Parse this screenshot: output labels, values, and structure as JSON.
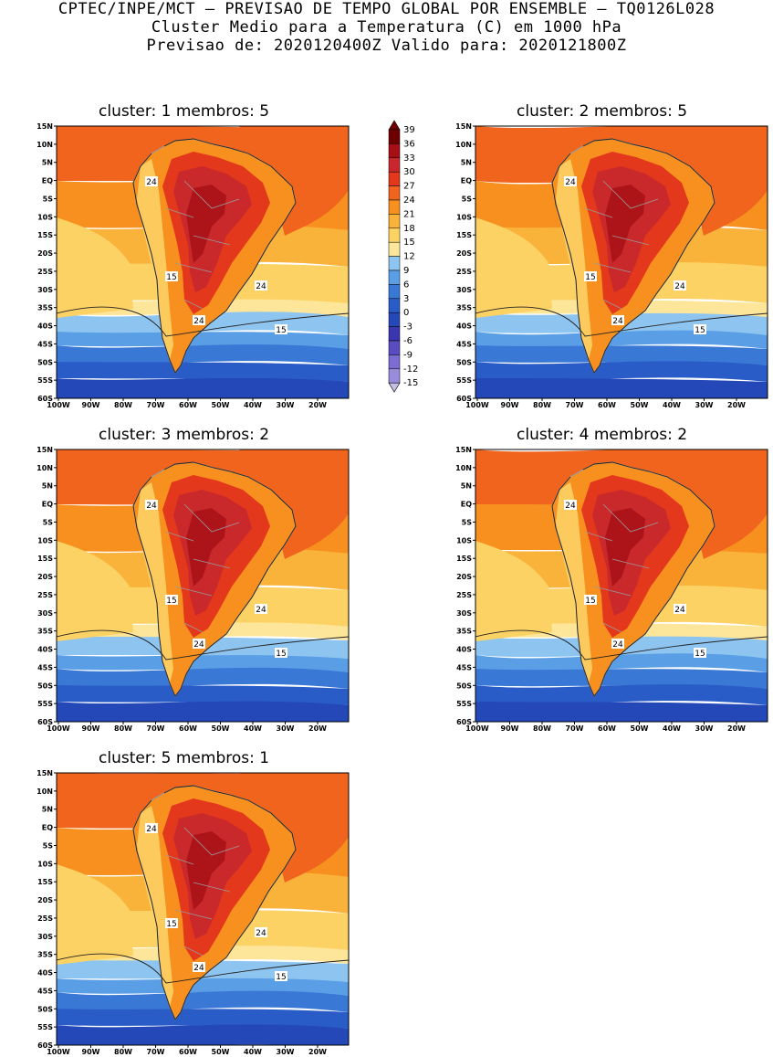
{
  "header": {
    "line1": "CPTEC/INPE/MCT – PREVISAO DE TEMPO GLOBAL POR ENSEMBLE – TQ0126L028",
    "line2": "Cluster Medio para a Temperatura (C) em 1000 hPa",
    "line3": "Previsao de: 2020120400Z   Valido para: 2020121800Z"
  },
  "axes": {
    "lat_labels": [
      "15N",
      "10N",
      "5N",
      "EQ",
      "5S",
      "10S",
      "15S",
      "20S",
      "25S",
      "30S",
      "35S",
      "40S",
      "45S",
      "50S",
      "55S",
      "60S"
    ],
    "lon_labels": [
      "100W",
      "90W",
      "80W",
      "70W",
      "60W",
      "50W",
      "40W",
      "30W",
      "20W"
    ]
  },
  "colorbar": {
    "labels": [
      "39",
      "36",
      "33",
      "30",
      "27",
      "24",
      "21",
      "18",
      "15",
      "12",
      "9",
      "6",
      "3",
      "0",
      "-3",
      "-6",
      "-9",
      "-12",
      "-15"
    ],
    "colors": [
      "#6e0000",
      "#a50f15",
      "#c8282d",
      "#e3381c",
      "#f0641e",
      "#f7901e",
      "#f9b23a",
      "#fdd264",
      "#fde69a",
      "#8ec5f0",
      "#5a9ee6",
      "#3a78d6",
      "#2a5cc8",
      "#2448b8",
      "#3a36b0",
      "#5a4cc0",
      "#7a6cd0",
      "#9a8cdc",
      "#c6bee8"
    ]
  },
  "panels": [
    {
      "title": "cluster: 1   membros: 5",
      "contour_labels": [
        "24",
        "24",
        "24",
        "15",
        "15"
      ]
    },
    {
      "title": "cluster: 2   membros: 5",
      "contour_labels": [
        "24",
        "24",
        "24",
        "15",
        "15"
      ]
    },
    {
      "title": "cluster: 3   membros: 2",
      "contour_labels": [
        "24",
        "24",
        "24",
        "15",
        "15"
      ]
    },
    {
      "title": "cluster: 4   membros: 2",
      "contour_labels": [
        "24",
        "24",
        "24",
        "15",
        "15"
      ]
    },
    {
      "title": "cluster: 5   membros: 1",
      "contour_labels": [
        "24",
        "24",
        "24",
        "15",
        "15"
      ]
    }
  ]
}
